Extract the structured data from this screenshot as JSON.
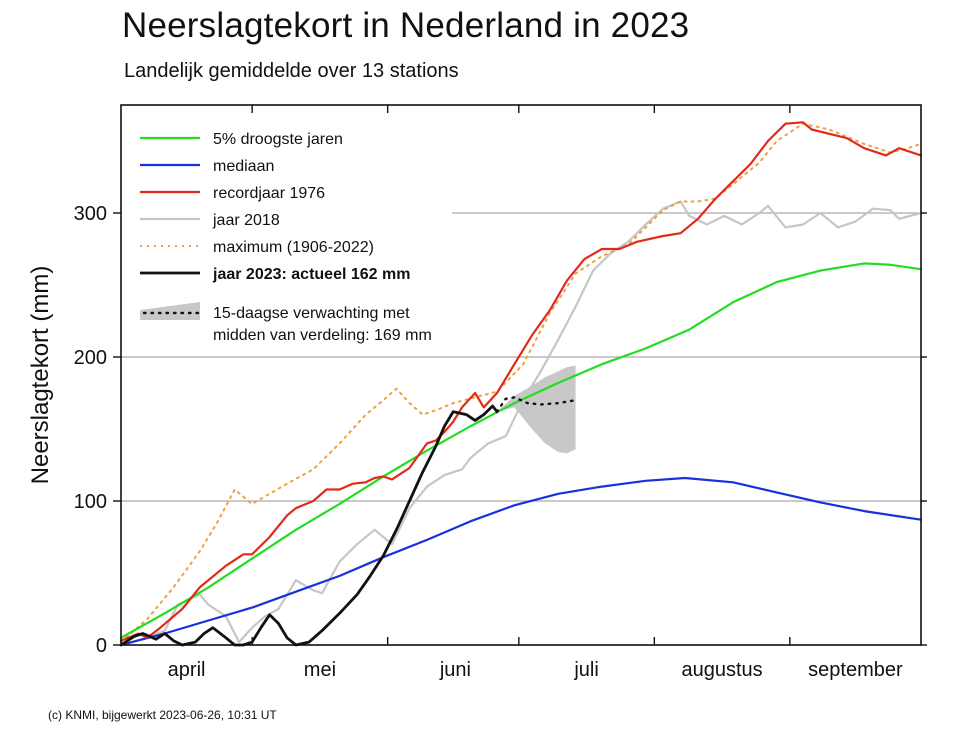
{
  "title": "Neerslagtekort in Nederland in 2023",
  "subtitle": "Landelijk gemiddelde over 13 stations",
  "footer": "(c) KNMI, bijgewerkt 2023-06-26, 10:31 UT",
  "chart_data": {
    "type": "line",
    "ylabel": "Neerslagtekort (mm)",
    "xlabel": "",
    "x_unit": "day of season starting 1 April",
    "xlim": [
      0,
      183
    ],
    "ylim": [
      0,
      375
    ],
    "yticks": [
      0,
      100,
      200,
      300
    ],
    "month_labels": [
      {
        "label": "april",
        "day": 15
      },
      {
        "label": "mei",
        "day": 45.5
      },
      {
        "label": "juni",
        "day": 76.5
      },
      {
        "label": "juli",
        "day": 106.5
      },
      {
        "label": "augustus",
        "day": 137.5
      },
      {
        "label": "september",
        "day": 168
      }
    ],
    "month_boundaries": [
      30,
      61,
      91,
      122,
      153
    ],
    "legend_position": "top-left",
    "grid": true,
    "series": [
      {
        "name": "5% droogste jaren",
        "color": "#22dd22",
        "style": "solid",
        "points": [
          [
            0,
            5
          ],
          [
            10,
            22
          ],
          [
            20,
            40
          ],
          [
            30,
            60
          ],
          [
            40,
            80
          ],
          [
            50,
            98
          ],
          [
            60,
            117
          ],
          [
            70,
            135
          ],
          [
            80,
            152
          ],
          [
            90,
            168
          ],
          [
            100,
            182
          ],
          [
            110,
            195
          ],
          [
            120,
            206
          ],
          [
            130,
            219
          ],
          [
            140,
            238
          ],
          [
            150,
            252
          ],
          [
            160,
            260
          ],
          [
            170,
            265
          ],
          [
            176,
            264
          ],
          [
            183,
            261
          ]
        ]
      },
      {
        "name": "mediaan",
        "color": "#1a2fdd",
        "style": "solid",
        "points": [
          [
            0,
            0
          ],
          [
            10,
            8
          ],
          [
            20,
            17
          ],
          [
            30,
            26
          ],
          [
            40,
            37
          ],
          [
            50,
            48
          ],
          [
            60,
            61
          ],
          [
            70,
            73
          ],
          [
            80,
            86
          ],
          [
            90,
            97
          ],
          [
            100,
            105
          ],
          [
            110,
            110
          ],
          [
            120,
            114
          ],
          [
            129,
            116
          ],
          [
            140,
            113
          ],
          [
            150,
            106
          ],
          [
            160,
            99
          ],
          [
            170,
            93
          ],
          [
            183,
            87
          ]
        ]
      },
      {
        "name": "recordjaar 1976",
        "color": "#e22a1a",
        "style": "solid",
        "points": [
          [
            0,
            3
          ],
          [
            4,
            8
          ],
          [
            6,
            5
          ],
          [
            9,
            12
          ],
          [
            14,
            25
          ],
          [
            18,
            40
          ],
          [
            24,
            55
          ],
          [
            28,
            63
          ],
          [
            30,
            63
          ],
          [
            34,
            75
          ],
          [
            38,
            90
          ],
          [
            40,
            95
          ],
          [
            44,
            100
          ],
          [
            47,
            108
          ],
          [
            50,
            108
          ],
          [
            53,
            112
          ],
          [
            56,
            113
          ],
          [
            58,
            116
          ],
          [
            60,
            117
          ],
          [
            62,
            115
          ],
          [
            66,
            123
          ],
          [
            70,
            140
          ],
          [
            72,
            142
          ],
          [
            74,
            148
          ],
          [
            76,
            155
          ],
          [
            78,
            165
          ],
          [
            81,
            175
          ],
          [
            83,
            165
          ],
          [
            86,
            175
          ],
          [
            90,
            195
          ],
          [
            94,
            215
          ],
          [
            98,
            232
          ],
          [
            102,
            253
          ],
          [
            106,
            268
          ],
          [
            110,
            275
          ],
          [
            114,
            275
          ],
          [
            118,
            280
          ],
          [
            124,
            284
          ],
          [
            128,
            286
          ],
          [
            132,
            296
          ],
          [
            136,
            310
          ],
          [
            140,
            322
          ],
          [
            144,
            334
          ],
          [
            148,
            350
          ],
          [
            152,
            362
          ],
          [
            156,
            363
          ],
          [
            158,
            358
          ],
          [
            162,
            355
          ],
          [
            166,
            352
          ],
          [
            170,
            345
          ],
          [
            175,
            340
          ],
          [
            178,
            345
          ],
          [
            183,
            340
          ]
        ]
      },
      {
        "name": "jaar 2018",
        "color": "#c6c6c6",
        "style": "solid",
        "points": [
          [
            0,
            0
          ],
          [
            6,
            5
          ],
          [
            10,
            10
          ],
          [
            13,
            28
          ],
          [
            18,
            35
          ],
          [
            20,
            28
          ],
          [
            24,
            20
          ],
          [
            27,
            2
          ],
          [
            30,
            12
          ],
          [
            33,
            20
          ],
          [
            36,
            25
          ],
          [
            40,
            45
          ],
          [
            44,
            38
          ],
          [
            46,
            36
          ],
          [
            50,
            58
          ],
          [
            54,
            70
          ],
          [
            58,
            80
          ],
          [
            62,
            70
          ],
          [
            66,
            95
          ],
          [
            70,
            110
          ],
          [
            74,
            118
          ],
          [
            78,
            122
          ],
          [
            80,
            130
          ],
          [
            84,
            140
          ],
          [
            88,
            145
          ],
          [
            92,
            170
          ],
          [
            96,
            190
          ],
          [
            100,
            212
          ],
          [
            104,
            235
          ],
          [
            108,
            260
          ],
          [
            112,
            272
          ],
          [
            116,
            280
          ],
          [
            120,
            292
          ],
          [
            124,
            303
          ],
          [
            128,
            308
          ],
          [
            130,
            298
          ],
          [
            134,
            292
          ],
          [
            138,
            298
          ],
          [
            142,
            292
          ],
          [
            146,
            300
          ],
          [
            148,
            305
          ],
          [
            152,
            290
          ],
          [
            156,
            292
          ],
          [
            160,
            300
          ],
          [
            164,
            290
          ],
          [
            168,
            294
          ],
          [
            172,
            303
          ],
          [
            176,
            302
          ],
          [
            178,
            296
          ],
          [
            183,
            300
          ]
        ]
      },
      {
        "name": "maximum (1906-2022)",
        "color": "#f0a040",
        "style": "dotted",
        "points": [
          [
            0,
            2
          ],
          [
            6,
            18
          ],
          [
            12,
            40
          ],
          [
            18,
            65
          ],
          [
            22,
            85
          ],
          [
            26,
            108
          ],
          [
            30,
            98
          ],
          [
            34,
            105
          ],
          [
            38,
            112
          ],
          [
            44,
            122
          ],
          [
            50,
            140
          ],
          [
            56,
            160
          ],
          [
            60,
            170
          ],
          [
            63,
            178
          ],
          [
            66,
            168
          ],
          [
            69,
            160
          ],
          [
            72,
            163
          ],
          [
            76,
            168
          ],
          [
            81,
            172
          ],
          [
            86,
            176
          ],
          [
            92,
            195
          ],
          [
            98,
            230
          ],
          [
            104,
            258
          ],
          [
            110,
            270
          ],
          [
            116,
            278
          ],
          [
            120,
            290
          ],
          [
            124,
            302
          ],
          [
            128,
            308
          ],
          [
            132,
            308
          ],
          [
            136,
            310
          ],
          [
            140,
            320
          ],
          [
            146,
            335
          ],
          [
            150,
            350
          ],
          [
            156,
            362
          ],
          [
            162,
            358
          ],
          [
            170,
            348
          ],
          [
            176,
            342
          ],
          [
            180,
            345
          ],
          [
            183,
            348
          ]
        ]
      },
      {
        "name": "jaar 2023: actueel 162 mm",
        "color": "#111111",
        "style": "solid",
        "bold": true,
        "points": [
          [
            0,
            0
          ],
          [
            3,
            6
          ],
          [
            5,
            8
          ],
          [
            8,
            4
          ],
          [
            10,
            8
          ],
          [
            12,
            3
          ],
          [
            14,
            0
          ],
          [
            17,
            2
          ],
          [
            19,
            8
          ],
          [
            21,
            12
          ],
          [
            24,
            5
          ],
          [
            26,
            0
          ],
          [
            28,
            0
          ],
          [
            30,
            2
          ],
          [
            32,
            12
          ],
          [
            34,
            21
          ],
          [
            36,
            15
          ],
          [
            38,
            5
          ],
          [
            40,
            0
          ],
          [
            43,
            2
          ],
          [
            46,
            10
          ],
          [
            50,
            22
          ],
          [
            54,
            35
          ],
          [
            57,
            48
          ],
          [
            60,
            62
          ],
          [
            63,
            80
          ],
          [
            66,
            100
          ],
          [
            69,
            120
          ],
          [
            72,
            138
          ],
          [
            74,
            152
          ],
          [
            76,
            162
          ],
          [
            79,
            160
          ],
          [
            81,
            156
          ],
          [
            83,
            160
          ],
          [
            85,
            166
          ],
          [
            86,
            162
          ]
        ]
      }
    ],
    "forecast": {
      "name": "15-daagse verwachting met midden van verdeling: 169 mm",
      "color": "#c8c8c8",
      "median_points": [
        [
          86,
          162
        ],
        [
          88,
          171
        ],
        [
          90,
          172
        ],
        [
          93,
          168
        ],
        [
          96,
          167
        ],
        [
          100,
          168
        ],
        [
          104,
          170
        ]
      ],
      "band_upper": [
        [
          86,
          162
        ],
        [
          90,
          173
        ],
        [
          94,
          180
        ],
        [
          97,
          186
        ],
        [
          100,
          190
        ],
        [
          102,
          193
        ],
        [
          104,
          194
        ]
      ],
      "band_lower": [
        [
          86,
          162
        ],
        [
          90,
          165
        ],
        [
          94,
          150
        ],
        [
          97,
          140
        ],
        [
          100,
          134
        ],
        [
          102,
          133
        ],
        [
          104,
          136
        ]
      ]
    },
    "legend_entries": [
      {
        "label": "5% droogste jaren",
        "color": "#22dd22",
        "style": "solid",
        "bold": false
      },
      {
        "label": "mediaan",
        "color": "#1a2fdd",
        "style": "solid",
        "bold": false
      },
      {
        "label": "recordjaar 1976",
        "color": "#e22a1a",
        "style": "solid",
        "bold": false
      },
      {
        "label": "jaar 2018",
        "color": "#c6c6c6",
        "style": "solid",
        "bold": false
      },
      {
        "label": "maximum (1906-2022)",
        "color": "#f0a040",
        "style": "dotted",
        "bold": false
      },
      {
        "label": "jaar 2023: actueel 162 mm",
        "color": "#111111",
        "style": "solid",
        "bold": true
      }
    ],
    "legend_forecast": {
      "line1": "15-daagse verwachting met",
      "line2": "midden van verdeling: 169 mm"
    }
  }
}
